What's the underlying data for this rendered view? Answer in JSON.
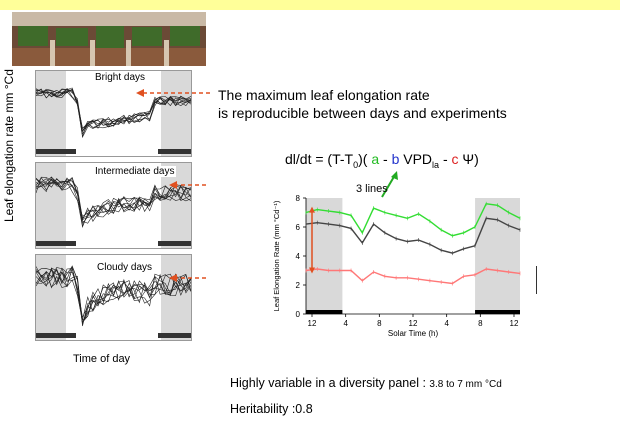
{
  "header": {
    "bar_color": "#ffff99"
  },
  "left_figure": {
    "photo_icon": "greenhouse-photo",
    "panels": [
      {
        "title": "Bright days"
      },
      {
        "title": "Intermediate days"
      },
      {
        "title": "Cloudy days"
      }
    ],
    "y_label": "Leaf elongation rate mm °Cd",
    "x_label": "Time of day"
  },
  "note": {
    "line1": "The maximum leaf elongation rate",
    "line2": "is reproducible between days and experiments"
  },
  "formula": {
    "part1": "dl/dt = (T-T",
    "sub0": "0",
    "part2": ")( ",
    "a": "a",
    "minus1": " - ",
    "b": "b",
    "vpd": " VPD",
    "sub_la": "la",
    "minus2": " - ",
    "c": "c",
    "psi": " Ψ)"
  },
  "callout": {
    "text": "3 lines"
  },
  "chart_data": {
    "type": "line",
    "xlabel": "Solar Time (h)",
    "ylabel": "Leaf Elongation Rate (mm °Cd⁻¹)",
    "x_tick_labels": [
      "12",
      "4",
      "8",
      "12",
      "4",
      "8",
      "12"
    ],
    "y_tick_labels": [
      "0",
      "2",
      "4",
      "6",
      "8"
    ],
    "ylim": [
      0,
      8
    ],
    "series": [
      {
        "color": "#33dd33",
        "values": [
          7.0,
          7.2,
          7.1,
          7.0,
          6.8,
          5.6,
          7.3,
          7.0,
          6.8,
          6.6,
          6.9,
          6.4,
          5.8,
          5.4,
          5.6,
          6.0,
          7.6,
          7.5,
          7.0,
          6.6
        ]
      },
      {
        "color": "#444444",
        "values": [
          6.2,
          6.3,
          6.2,
          6.1,
          5.9,
          4.9,
          6.2,
          5.6,
          5.2,
          5.0,
          5.1,
          4.8,
          4.4,
          4.2,
          4.5,
          4.7,
          6.6,
          6.5,
          6.1,
          5.8
        ]
      },
      {
        "color": "#ff7777",
        "values": [
          3.0,
          3.1,
          3.0,
          3.0,
          3.0,
          2.3,
          2.9,
          2.6,
          2.5,
          2.5,
          2.4,
          2.3,
          2.2,
          2.1,
          2.6,
          2.7,
          3.1,
          3.0,
          2.9,
          2.8
        ]
      }
    ]
  },
  "footer": {
    "variable_main": "Highly variable in a diversity panel : ",
    "variable_small": "3.8 to 7 mm °Cd",
    "heritability": "Heritability :0.8"
  },
  "colors": {
    "arrow": "#e05020",
    "shade": "#d9d9d9"
  }
}
